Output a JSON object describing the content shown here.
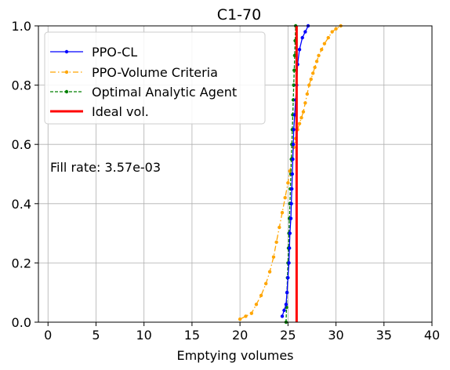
{
  "chart_data": {
    "type": "line",
    "title": "C1-70",
    "xlabel": "Emptying volumes",
    "ylabel": "",
    "xlim": [
      -1,
      40
    ],
    "ylim": [
      0,
      1
    ],
    "xticks": [
      0,
      5,
      10,
      15,
      20,
      25,
      30,
      35,
      40
    ],
    "yticks": [
      0.0,
      0.2,
      0.4,
      0.6,
      0.8,
      1.0
    ],
    "xtick_labels": [
      "0",
      "5",
      "10",
      "15",
      "20",
      "25",
      "30",
      "35",
      "40"
    ],
    "ytick_labels": [
      "0.0",
      "0.2",
      "0.4",
      "0.6",
      "0.8",
      "1.0"
    ],
    "grid": true,
    "legend_position": "top-left",
    "annotation": "Fill rate: 3.57e-03",
    "series": [
      {
        "name": "PPO-CL",
        "color": "#0000ff",
        "style": "solid-dot",
        "x": [
          24.4,
          24.6,
          24.8,
          24.9,
          25.0,
          25.1,
          25.15,
          25.2,
          25.3,
          25.35,
          25.4,
          25.45,
          25.5,
          25.55,
          25.6,
          25.7,
          25.8,
          25.9,
          26.0,
          26.2,
          26.5,
          26.8,
          27.1
        ],
        "y": [
          0.02,
          0.04,
          0.06,
          0.1,
          0.15,
          0.2,
          0.25,
          0.3,
          0.35,
          0.4,
          0.45,
          0.5,
          0.55,
          0.6,
          0.65,
          0.7,
          0.75,
          0.8,
          0.87,
          0.92,
          0.96,
          0.98,
          1.0
        ]
      },
      {
        "name": "PPO-Volume Criteria",
        "color": "#ffa500",
        "style": "dashdot-dot",
        "x": [
          20.0,
          20.6,
          21.2,
          21.7,
          22.2,
          22.7,
          23.1,
          23.5,
          23.8,
          24.1,
          24.4,
          24.7,
          25.0,
          25.2,
          25.4,
          25.6,
          25.8,
          26.0,
          26.2,
          26.4,
          26.6,
          26.8,
          27.0,
          27.2,
          27.4,
          27.6,
          27.8,
          28.0,
          28.2,
          28.5,
          28.8,
          29.2,
          29.6,
          30.0,
          30.5
        ],
        "y": [
          0.01,
          0.02,
          0.03,
          0.06,
          0.09,
          0.13,
          0.17,
          0.22,
          0.27,
          0.32,
          0.37,
          0.42,
          0.47,
          0.51,
          0.55,
          0.59,
          0.62,
          0.65,
          0.67,
          0.69,
          0.71,
          0.74,
          0.77,
          0.8,
          0.82,
          0.84,
          0.86,
          0.88,
          0.9,
          0.92,
          0.94,
          0.96,
          0.98,
          0.99,
          1.0
        ]
      },
      {
        "name": "Optimal Analytic Agent",
        "color": "#008000",
        "style": "dashed-dot",
        "x": [
          24.8,
          24.85,
          24.9,
          24.95,
          25.0,
          25.05,
          25.1,
          25.15,
          25.2,
          25.25,
          25.3,
          25.35,
          25.4,
          25.45,
          25.5,
          25.55,
          25.6,
          25.65,
          25.7,
          25.75,
          25.8
        ],
        "y": [
          0.0,
          0.05,
          0.1,
          0.15,
          0.2,
          0.25,
          0.3,
          0.35,
          0.4,
          0.45,
          0.5,
          0.55,
          0.6,
          0.65,
          0.7,
          0.75,
          0.8,
          0.85,
          0.9,
          0.95,
          1.0
        ]
      },
      {
        "name": "Ideal vol.",
        "color": "#ff0000",
        "style": "vline",
        "x": [
          25.9,
          25.9
        ],
        "y": [
          0,
          1
        ]
      }
    ]
  }
}
